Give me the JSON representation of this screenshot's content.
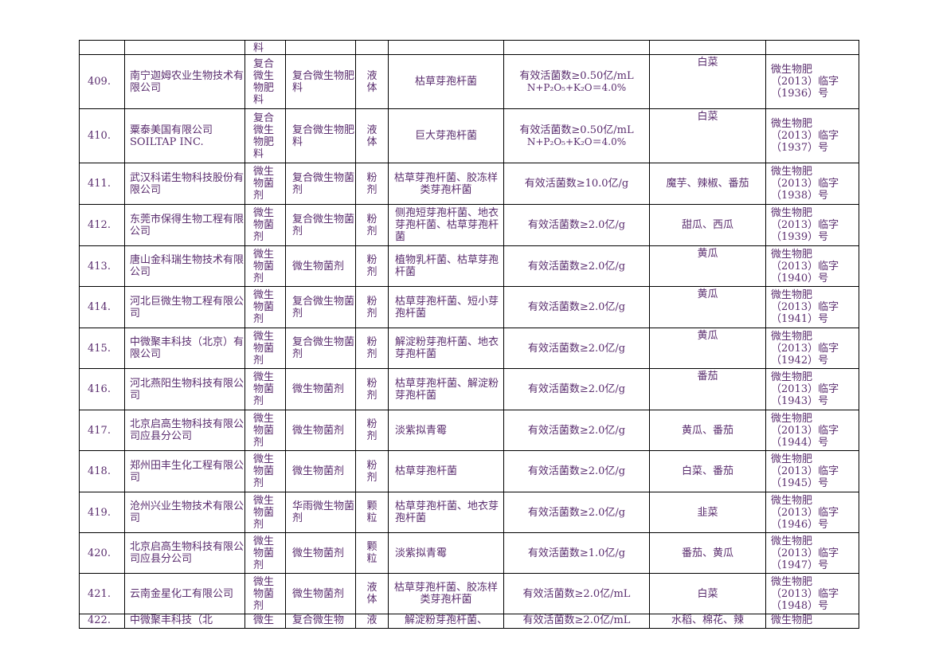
{
  "table": {
    "top_fragment": {
      "category_tail": "料"
    },
    "rows": [
      {
        "no": "409.",
        "company": "南宁迦姆农业生物技术有限公司",
        "category": [
          "复合",
          "微生",
          "物肥",
          "料"
        ],
        "product": "复合微生物肥料",
        "form": [
          "液",
          "体"
        ],
        "strain": "枯草芽孢杆菌",
        "content": [
          "有效活菌数≥0.50亿/mL",
          "N+P₂O₅+K₂O＝4.0%"
        ],
        "crops": "白菜",
        "reg": [
          "微生物肥",
          "（2013）临字",
          "（1936）号"
        ]
      },
      {
        "no": "410.",
        "company": "粟泰美国有限公司 SOILTAP INC.",
        "category": [
          "复合",
          "微生",
          "物肥",
          "料"
        ],
        "product": "复合微生物肥料",
        "form": [
          "液",
          "体"
        ],
        "strain": "巨大芽孢杆菌",
        "content": [
          "有效活菌数≥0.50亿/mL",
          "N+P₂O₅+K₂O＝4.0%"
        ],
        "crops": "白菜",
        "reg": [
          "微生物肥",
          "（2013）临字",
          "（1937）号"
        ]
      },
      {
        "no": "411.",
        "company": "武汉科诺生物科技股份有限公司",
        "category": [
          "微生",
          "物菌",
          "剂"
        ],
        "product": "复合微生物菌剂",
        "form": [
          "粉",
          "剂"
        ],
        "strain": "枯草芽孢杆菌、胶冻样类芽孢杆菌",
        "content": [
          "有效活菌数≥10.0亿/g"
        ],
        "crops": "魔芋、辣椒、番茄",
        "reg": [
          "微生物肥",
          "（2013）临字",
          "（1938）号"
        ]
      },
      {
        "no": "412.",
        "company": "东莞市保得生物工程有限公司",
        "category": [
          "微生",
          "物菌",
          "剂"
        ],
        "product": "复合微生物菌剂",
        "form": [
          "粉",
          "剂"
        ],
        "strain": "侧孢短芽孢杆菌、地衣芽孢杆菌、枯草芽孢杆菌",
        "content": [
          "有效活菌数≥2.0亿/g"
        ],
        "crops": "甜瓜、西瓜",
        "reg": [
          "微生物肥",
          "（2013）临字",
          "（1939）号"
        ]
      },
      {
        "no": "413.",
        "company": "唐山金科瑞生物技术有限公司",
        "category": [
          "微生",
          "物菌",
          "剂"
        ],
        "product": "微生物菌剂",
        "form": [
          "粉",
          "剂"
        ],
        "strain": "植物乳杆菌、枯草芽孢杆菌",
        "content": [
          "有效活菌数≥2.0亿/g"
        ],
        "crops": "黄瓜",
        "reg": [
          "微生物肥",
          "（2013）临字",
          "（1940）号"
        ]
      },
      {
        "no": "414.",
        "company": "河北巨微生物工程有限公司",
        "category": [
          "微生",
          "物菌",
          "剂"
        ],
        "product": "复合微生物菌剂",
        "form": [
          "粉",
          "剂"
        ],
        "strain": "枯草芽孢杆菌、短小芽孢杆菌",
        "content": [
          "有效活菌数≥2.0亿/g"
        ],
        "crops": "黄瓜",
        "reg": [
          "微生物肥",
          "（2013）临字",
          "（1941）号"
        ]
      },
      {
        "no": "415.",
        "company": "中微聚丰科技（北京）有限公司",
        "category": [
          "微生",
          "物菌",
          "剂"
        ],
        "product": "复合微生物菌剂",
        "form": [
          "粉",
          "剂"
        ],
        "strain": "解淀粉芽孢杆菌、地衣芽孢杆菌",
        "content": [
          "有效活菌数≥2.0亿/g"
        ],
        "crops": "黄瓜",
        "reg": [
          "微生物肥",
          "（2013）临字",
          "（1942）号"
        ]
      },
      {
        "no": "416.",
        "company": "河北燕阳生物科技有限公司",
        "category": [
          "微生",
          "物菌",
          "剂"
        ],
        "product": "微生物菌剂",
        "form": [
          "粉",
          "剂"
        ],
        "strain": "枯草芽孢杆菌、解淀粉芽孢杆菌",
        "content": [
          "有效活菌数≥2.0亿/g"
        ],
        "crops": "番茄",
        "reg": [
          "微生物肥",
          "（2013）临字",
          "（1943）号"
        ]
      },
      {
        "no": "417.",
        "company": "北京启高生物科技有限公司应县分公司",
        "category": [
          "微生",
          "物菌",
          "剂"
        ],
        "product": "微生物菌剂",
        "form": [
          "粉",
          "剂"
        ],
        "strain": "淡紫拟青霉",
        "content": [
          "有效活菌数≥2.0亿/g"
        ],
        "crops": "黄瓜、番茄",
        "reg": [
          "微生物肥",
          "（2013）临字",
          "（1944）号"
        ]
      },
      {
        "no": "418.",
        "company": "郑州田丰生化工程有限公司",
        "category": [
          "微生",
          "物菌",
          "剂"
        ],
        "product": "微生物菌剂",
        "form": [
          "粉",
          "剂"
        ],
        "strain": "枯草芽孢杆菌",
        "content": [
          "有效活菌数≥2.0亿/g"
        ],
        "crops": "白菜、番茄",
        "reg": [
          "微生物肥",
          "（2013）临字",
          "（1945）号"
        ]
      },
      {
        "no": "419.",
        "company": "沧州兴业生物技术有限公司",
        "category": [
          "微生",
          "物菌",
          "剂"
        ],
        "product": "华雨微生物菌剂",
        "form": [
          "颗",
          "粒"
        ],
        "strain": "枯草芽孢杆菌、地衣芽孢杆菌",
        "content": [
          "有效活菌数≥2.0亿/g"
        ],
        "crops": "韭菜",
        "reg": [
          "微生物肥",
          "（2013）临字",
          "（1946）号"
        ]
      },
      {
        "no": "420.",
        "company": "北京启高生物科技有限公司应县分公司",
        "category": [
          "微生",
          "物菌",
          "剂"
        ],
        "product": "微生物菌剂",
        "form": [
          "颗",
          "粒"
        ],
        "strain": "淡紫拟青霉",
        "content": [
          "有效活菌数≥1.0亿/g"
        ],
        "crops": "番茄、黄瓜",
        "reg": [
          "微生物肥",
          "（2013）临字",
          "（1947）号"
        ]
      },
      {
        "no": "421.",
        "company": "云南金星化工有限公司",
        "category": [
          "微生",
          "物菌",
          "剂"
        ],
        "product": "微生物菌剂",
        "form": [
          "液",
          "体"
        ],
        "strain": "枯草芽孢杆菌、胶冻样类芽孢杆菌",
        "content": [
          "有效活菌数≥2.0亿/mL"
        ],
        "crops": "白菜",
        "reg": [
          "微生物肥",
          "（2013）临字",
          "（1948）号"
        ]
      },
      {
        "no": "422.",
        "company": "中微聚丰科技（北",
        "category": [
          "微生"
        ],
        "product": "复合微生物",
        "form": [
          "液"
        ],
        "strain": "解淀粉芽孢杆菌、",
        "content": [
          "有效活菌数≥2.0亿/mL"
        ],
        "crops": "水稻、棉花、辣",
        "reg": [
          "微生物肥"
        ]
      }
    ]
  }
}
